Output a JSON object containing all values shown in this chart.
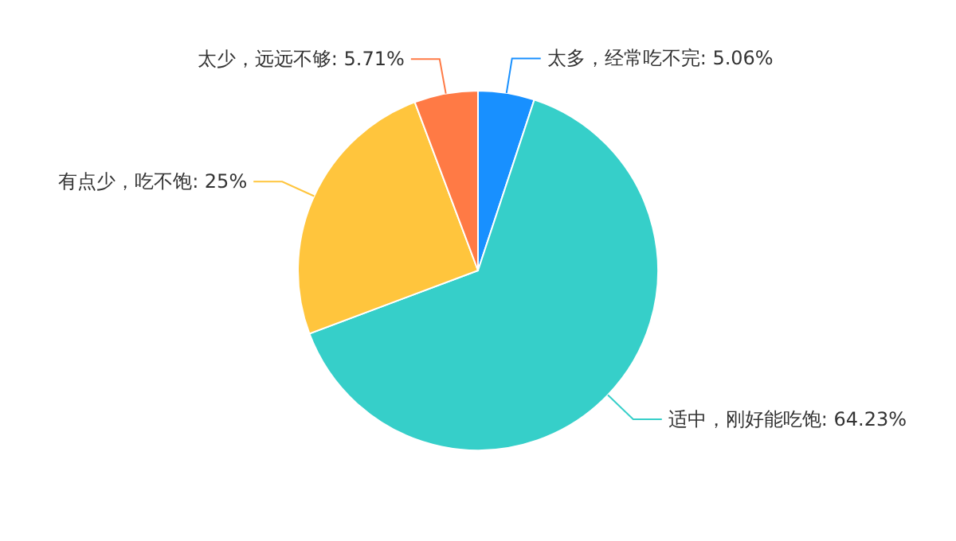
{
  "chart_data": {
    "type": "pie",
    "categories": [
      "太多，经常吃不完",
      "适中，刚好能吃饱",
      "有点少，吃不饱",
      "太少，远远不够"
    ],
    "values": [
      5.06,
      64.23,
      25,
      5.71
    ],
    "value_labels": [
      "5.06%",
      "64.23%",
      "25%",
      "5.71%"
    ],
    "colors": [
      "#1890ff",
      "#36cfc9",
      "#ffc53d",
      "#ff7a45"
    ]
  }
}
